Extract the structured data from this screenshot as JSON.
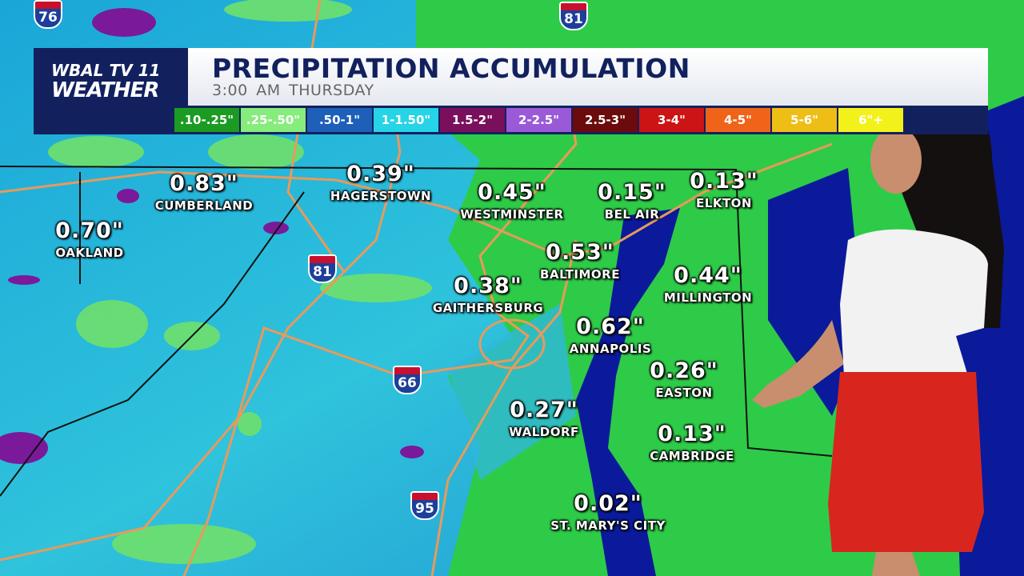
{
  "logo": {
    "station": "WBAL TV 11",
    "brand": "WEATHER"
  },
  "header": {
    "title": "PRECIPITATION ACCUMULATION",
    "time": "3:00 AM",
    "day": "THURSDAY"
  },
  "legend": [
    {
      "label": ".10-.25\"",
      "color": "#1b9b22"
    },
    {
      "label": ".25-.50\"",
      "color": "#86ec7c"
    },
    {
      "label": ".50-1\"",
      "color": "#1e5fb8"
    },
    {
      "label": "1-1.50\"",
      "color": "#27d3e6"
    },
    {
      "label": "1.5-2\"",
      "color": "#7a105c"
    },
    {
      "label": "2-2.5\"",
      "color": "#9a5ad8"
    },
    {
      "label": "2.5-3\"",
      "color": "#6b0b0b"
    },
    {
      "label": "3-4\"",
      "color": "#cc1414"
    },
    {
      "label": "4-5\"",
      "color": "#f0641a"
    },
    {
      "label": "5-6\"",
      "color": "#eebe16"
    },
    {
      "label": "6\"+",
      "color": "#f2f21a"
    }
  ],
  "locations": [
    {
      "amount": "0.83\"",
      "name": "CUMBERLAND"
    },
    {
      "amount": "0.70\"",
      "name": "OAKLAND"
    },
    {
      "amount": "0.39\"",
      "name": "HAGERSTOWN"
    },
    {
      "amount": "0.45\"",
      "name": "WESTMINSTER"
    },
    {
      "amount": "0.15\"",
      "name": "BEL AIR"
    },
    {
      "amount": "0.13\"",
      "name": "ELKTON"
    },
    {
      "amount": "0.53\"",
      "name": "BALTIMORE"
    },
    {
      "amount": "0.38\"",
      "name": "GAITHERSBURG"
    },
    {
      "amount": "0.44\"",
      "name": "MILLINGTON"
    },
    {
      "amount": "0.62\"",
      "name": "ANNAPOLIS"
    },
    {
      "amount": "0.26\"",
      "name": "EASTON"
    },
    {
      "amount": "0.27\"",
      "name": "WALDORF"
    },
    {
      "amount": "0.13\"",
      "name": "CAMBRIDGE"
    },
    {
      "amount": "0.02\"",
      "name": "ST. MARY'S CITY"
    }
  ],
  "highways": [
    "76",
    "81",
    "81",
    "66",
    "95"
  ]
}
